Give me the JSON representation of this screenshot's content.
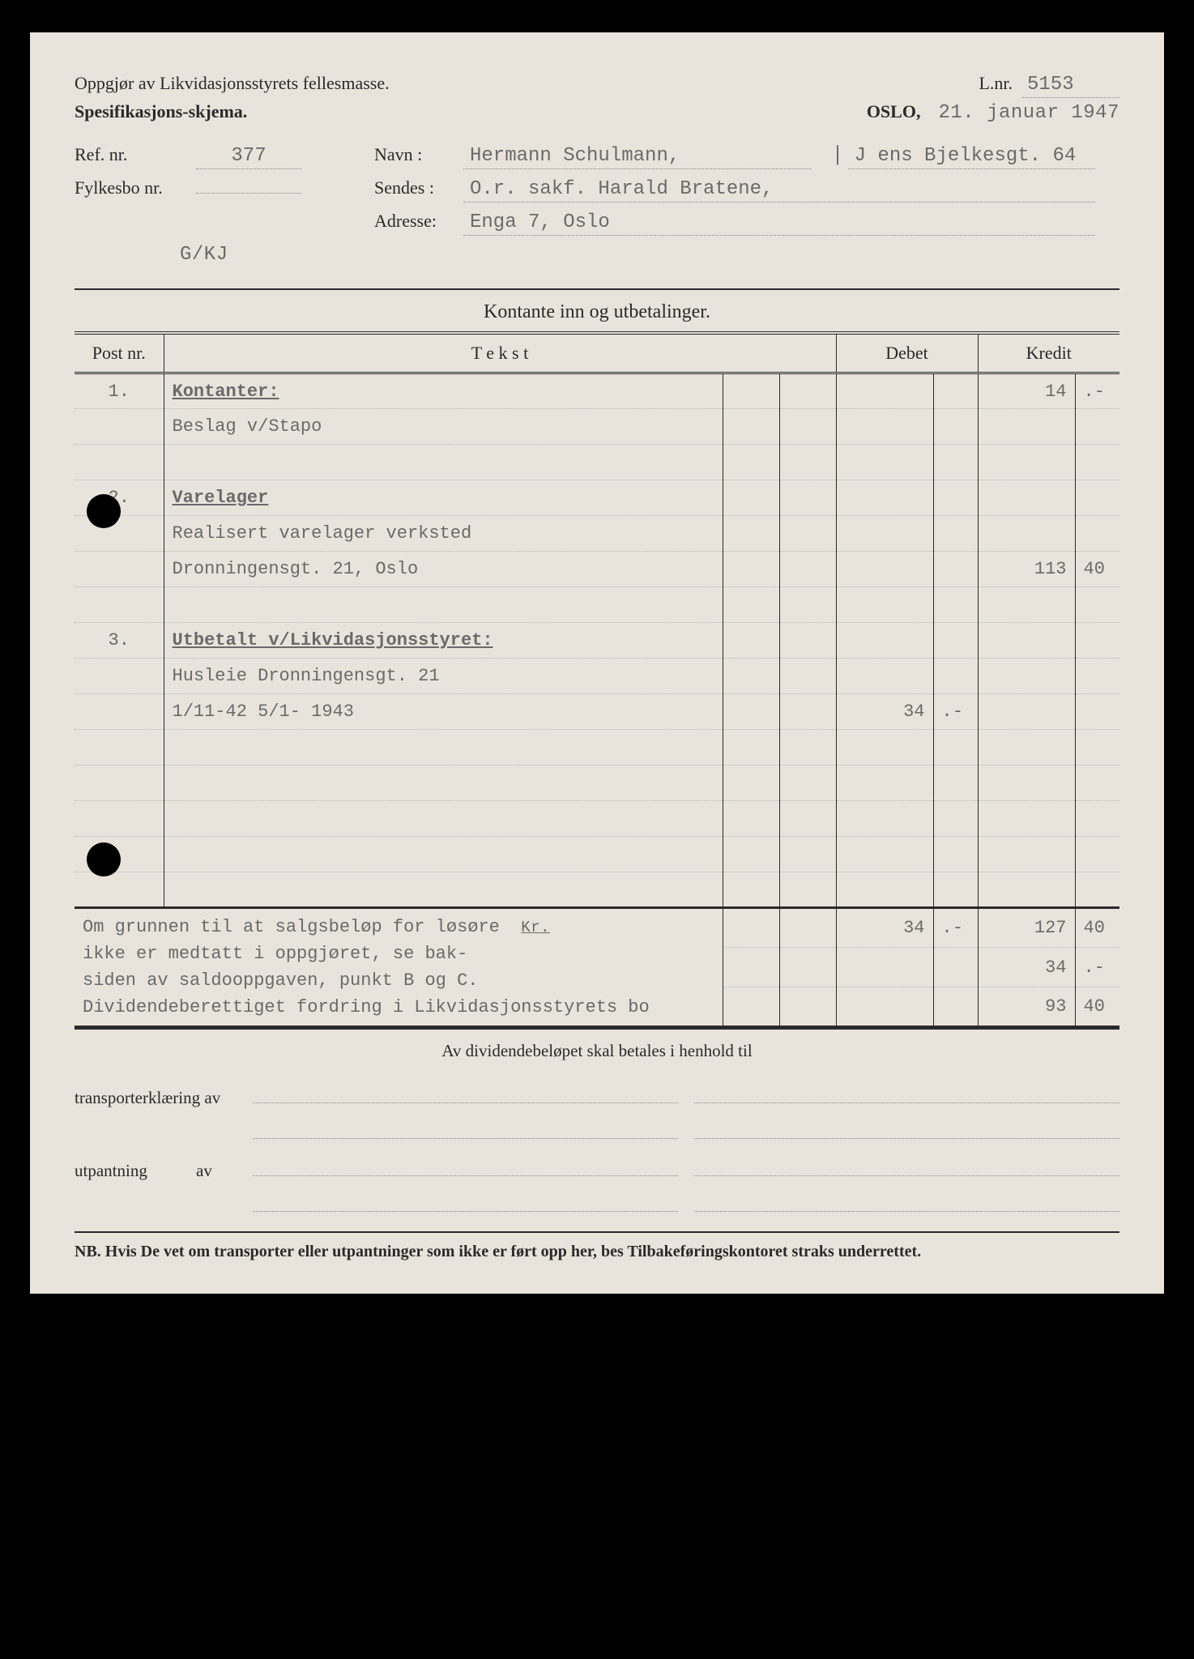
{
  "header": {
    "title1": "Oppgjør av Likvidasjonsstyrets fellesmasse.",
    "title2": "Spesifikasjons-skjema.",
    "lnr_label": "L.nr.",
    "lnr_value": "5153",
    "place": "OSLO,",
    "date": "21. januar 1947"
  },
  "info": {
    "ref_label": "Ref. nr.",
    "ref_value": "377",
    "navn_label": "Navn :",
    "navn_value": "Hermann Schulmann,",
    "navn_extra": "J ens Bjelkesgt. 64",
    "fylkesbo_label": "Fylkesbo nr.",
    "fylkesbo_value": "",
    "sendes_label": "Sendes :",
    "sendes_value": "O.r. sakf. Harald Bratene,",
    "adresse_label": "Adresse:",
    "adresse_value": "Enga 7, Oslo",
    "code": "G/KJ"
  },
  "section_title": "Kontante inn og utbetalinger.",
  "columns": {
    "post": "Post nr.",
    "tekst": "T e k s t",
    "debet": "Debet",
    "kredit": "Kredit"
  },
  "rows": [
    {
      "post": "1.",
      "text": "Kontanter:",
      "bold": true,
      "d": "",
      "d2": "",
      "k": "14",
      "k2": ".-"
    },
    {
      "post": "",
      "text": "Beslag v/Stapo",
      "d": "",
      "d2": "",
      "k": "",
      "k2": ""
    },
    {
      "post": "",
      "text": "",
      "d": "",
      "d2": "",
      "k": "",
      "k2": ""
    },
    {
      "post": "2.",
      "text": "Varelager",
      "bold": true,
      "d": "",
      "d2": "",
      "k": "",
      "k2": ""
    },
    {
      "post": "",
      "text": "Realisert varelager verksted",
      "d": "",
      "d2": "",
      "k": "",
      "k2": ""
    },
    {
      "post": "",
      "text": "Dronningensgt. 21, Oslo",
      "d": "",
      "d2": "",
      "k": "113",
      "k2": "40"
    },
    {
      "post": "",
      "text": "",
      "d": "",
      "d2": "",
      "k": "",
      "k2": ""
    },
    {
      "post": "3.",
      "text": "Utbetalt v/Likvidasjonsstyret:",
      "bold": true,
      "d": "",
      "d2": "",
      "k": "",
      "k2": ""
    },
    {
      "post": "",
      "text": "Husleie Dronningensgt. 21",
      "d": "",
      "d2": "",
      "k": "",
      "k2": ""
    },
    {
      "post": "",
      "text": "1/11-42 5/1- 1943",
      "d": "34",
      "d2": ".-",
      "k": "",
      "k2": ""
    },
    {
      "post": "",
      "text": "",
      "d": "",
      "d2": "",
      "k": "",
      "k2": ""
    },
    {
      "post": "",
      "text": "",
      "d": "",
      "d2": "",
      "k": "",
      "k2": ""
    },
    {
      "post": "",
      "text": "",
      "d": "",
      "d2": "",
      "k": "",
      "k2": ""
    },
    {
      "post": "",
      "text": "",
      "d": "",
      "d2": "",
      "k": "",
      "k2": ""
    },
    {
      "post": "",
      "text": "",
      "d": "",
      "d2": "",
      "k": "",
      "k2": ""
    }
  ],
  "totals": {
    "note1": "Om grunnen til at salgsbeløp for løsøre",
    "note2": "ikke er medtatt i oppgjøret, se bak-",
    "note3": "siden av saldooppgaven, punkt B og C.",
    "note4": "Dividendeberettiget fordring i Likvidasjonsstyrets bo",
    "kr_label": "Kr.",
    "row1_d": "34",
    "row1_d2": ".-",
    "row1_k": "127",
    "row1_k2": "40",
    "row2_k": "34",
    "row2_k2": ".-",
    "row3_k": "93",
    "row3_k2": "40"
  },
  "footer": {
    "dividend_line": "Av dividendebeløpet skal betales i henhold til",
    "transport_label": "transporterklæring av",
    "utpantning_label": "utpantning",
    "av_label": "av",
    "nb": "NB.  Hvis De vet om transporter eller utpantninger som ikke er ført opp her, bes Tilbakeføringskontoret straks underrettet."
  }
}
